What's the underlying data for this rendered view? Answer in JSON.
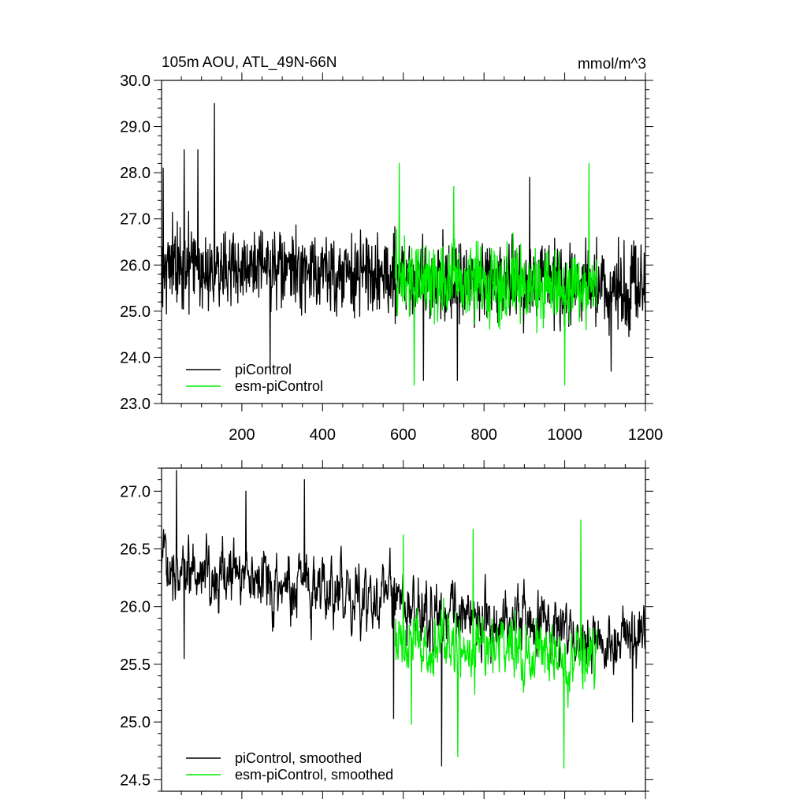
{
  "chart_data": [
    {
      "type": "line",
      "title_left": "105m AOU, ATL_49N-66N",
      "title_right": "mmol/m^3",
      "xlim": [
        1,
        1200
      ],
      "ylim": [
        23.0,
        30.0
      ],
      "xticks": [
        200,
        400,
        600,
        800,
        1000,
        1200
      ],
      "xtick_labels": [
        "200",
        "400",
        "600",
        "800",
        "1000",
        "1200"
      ],
      "yticks": [
        23.0,
        24.0,
        25.0,
        26.0,
        27.0,
        28.0,
        29.0,
        30.0
      ],
      "ytick_labels": [
        "23.0",
        "24.0",
        "25.0",
        "26.0",
        "27.0",
        "28.0",
        "29.0",
        "30.0"
      ],
      "legend_position": "bottom-left",
      "series": [
        {
          "name": "piControl",
          "color": "#000000",
          "x_range": [
            1,
            1200
          ],
          "mean": 26.0,
          "mean_end": 25.5,
          "noise": 0.75,
          "spikes": [
            [
              132,
              29.5
            ],
            [
              57,
              28.5
            ],
            [
              91,
              28.5
            ],
            [
              270,
              23.7
            ],
            [
              913,
              27.9
            ],
            [
              1115,
              23.7
            ],
            [
              650,
              23.5
            ],
            [
              734,
              23.5
            ],
            [
              5,
              28.1
            ]
          ]
        },
        {
          "name": "esm-piControl",
          "color": "#00ee00",
          "x_range": [
            580,
            1080
          ],
          "mean": 25.7,
          "mean_end": 25.5,
          "noise": 0.75,
          "spikes": [
            [
              590,
              28.2
            ],
            [
              627,
              23.4
            ],
            [
              1000,
              23.4
            ],
            [
              1060,
              28.2
            ],
            [
              725,
              27.7
            ]
          ]
        }
      ]
    },
    {
      "type": "line",
      "xlim": [
        1,
        1200
      ],
      "ylim": [
        24.4,
        27.2
      ],
      "xticks": [
        200,
        400,
        600,
        800,
        1000,
        1200
      ],
      "yticks": [
        24.5,
        25.0,
        25.5,
        26.0,
        26.5,
        27.0
      ],
      "ytick_labels": [
        "24.5",
        "25.0",
        "25.5",
        "26.0",
        "26.5",
        "27.0"
      ],
      "legend_position": "bottom-left",
      "series": [
        {
          "name": "piControl, smoothed",
          "color": "#000000",
          "x_range": [
            1,
            1200
          ],
          "mean": 26.4,
          "mean_end": 25.65,
          "noise": 0.3,
          "spikes": [
            [
              38,
              27.18
            ],
            [
              355,
              27.1
            ],
            [
              695,
              24.62
            ],
            [
              210,
              27.0
            ],
            [
              57,
              25.55
            ],
            [
              1168,
              25.0
            ],
            [
              576,
              25.03
            ]
          ]
        },
        {
          "name": "esm-piControl, smoothed",
          "color": "#00ee00",
          "x_range": [
            580,
            1080
          ],
          "mean": 25.7,
          "mean_end": 25.6,
          "noise": 0.3,
          "spikes": [
            [
              600,
              26.62
            ],
            [
              1040,
              26.75
            ],
            [
              998,
              24.6
            ],
            [
              620,
              24.98
            ],
            [
              773,
              26.67
            ],
            [
              735,
              24.7
            ]
          ]
        }
      ]
    }
  ]
}
